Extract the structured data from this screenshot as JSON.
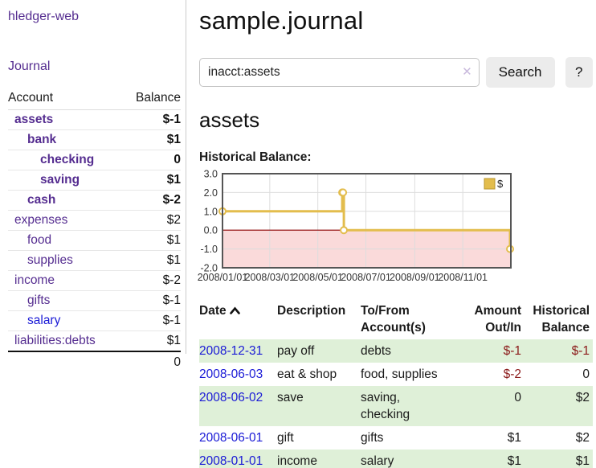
{
  "colors": {
    "link_purple": "#552d90",
    "link_blue": "#1a1ad6",
    "negative_strong": "#8b1a1a",
    "negative_soft": "#bb6565",
    "row_stripe_green": "#dff0d8",
    "button_bg": "#ececec",
    "chart_line_yellow": "#e3bd4d",
    "chart_fill_pink": "#fadada",
    "chart_zero_red": "#8b0000"
  },
  "sidebar": {
    "app_title": "hledger-web",
    "journal_link": "Journal",
    "accounts_table": {
      "headers": {
        "account": "Account",
        "balance": "Balance"
      },
      "rows": [
        {
          "account": "assets",
          "balance": "$-1",
          "indent": 1,
          "bold": true,
          "balance_class": "neg-strong",
          "link": "purple"
        },
        {
          "account": "bank",
          "balance": "$1",
          "indent": 2,
          "bold": true,
          "balance_class": "",
          "link": "purple"
        },
        {
          "account": "checking",
          "balance": "0",
          "indent": 3,
          "bold": true,
          "balance_class": "",
          "link": "purple"
        },
        {
          "account": "saving",
          "balance": "$1",
          "indent": 3,
          "bold": true,
          "balance_class": "",
          "link": "purple"
        },
        {
          "account": "cash",
          "balance": "$-2",
          "indent": 2,
          "bold": true,
          "balance_class": "neg-strong",
          "link": "purple"
        },
        {
          "account": "expenses",
          "balance": "$2",
          "indent": 1,
          "bold": false,
          "balance_class": "",
          "link": "purple"
        },
        {
          "account": "food",
          "balance": "$1",
          "indent": 2,
          "bold": false,
          "balance_class": "",
          "link": "purple"
        },
        {
          "account": "supplies",
          "balance": "$1",
          "indent": 2,
          "bold": false,
          "balance_class": "",
          "link": "purple"
        },
        {
          "account": "income",
          "balance": "$-2",
          "indent": 1,
          "bold": false,
          "balance_class": "neg-soft",
          "link": "purple"
        },
        {
          "account": "gifts",
          "balance": "$-1",
          "indent": 2,
          "bold": false,
          "balance_class": "neg-soft",
          "link": "purple"
        },
        {
          "account": "salary",
          "balance": "$-1",
          "indent": 2,
          "bold": false,
          "balance_class": "neg-soft",
          "link": "blue"
        },
        {
          "account": "liabilities:debts",
          "balance": "$1",
          "indent": 1,
          "bold": false,
          "balance_class": "",
          "link": "purple"
        }
      ],
      "total": "0"
    }
  },
  "main": {
    "page_title": "sample.journal",
    "search": {
      "value": "inacct:assets",
      "clear_icon": "✕",
      "search_button": "Search",
      "help_button": "?"
    },
    "account_heading": "assets",
    "chart_label": "Historical Balance:"
  },
  "chart_data": {
    "type": "line",
    "title": "Historical Balance:",
    "series": [
      {
        "name": "$",
        "step": true,
        "points": [
          [
            "2008-01-01",
            1
          ],
          [
            "2008-06-01",
            2
          ],
          [
            "2008-06-02",
            2
          ],
          [
            "2008-06-03",
            0
          ],
          [
            "2008-12-31",
            -1
          ]
        ]
      }
    ],
    "xlim": [
      "2008-01-01",
      "2009-01-01"
    ],
    "ylim": [
      -2,
      3
    ],
    "x_ticks": [
      "2008/01/01",
      "2008/03/01",
      "2008/05/01",
      "2008/07/01",
      "2008/09/01",
      "2008/11/01"
    ],
    "y_ticks": [
      "3.0",
      "2.0",
      "1.0",
      "0.0",
      "-1.0",
      "-2.0"
    ],
    "legend": {
      "label": "$",
      "position": "top-right"
    },
    "grid": true,
    "negative_region_shaded": true,
    "zero_line": true
  },
  "register": {
    "headers": {
      "date": "Date",
      "description": "Description",
      "accounts": "To/From\nAccount(s)",
      "amount": "Amount\nOut/In",
      "balance": "Historical\nBalance"
    },
    "sort": {
      "column": "date",
      "direction": "ascending"
    },
    "rows": [
      {
        "date": "2008-12-31",
        "description": "pay off",
        "accounts": "debts",
        "amount": "$-1",
        "balance": "$-1",
        "amount_neg": true,
        "balance_neg": true,
        "stripe": true
      },
      {
        "date": "2008-06-03",
        "description": "eat & shop",
        "accounts": "food, supplies",
        "amount": "$-2",
        "balance": "0",
        "amount_neg": true,
        "balance_neg": false,
        "stripe": false
      },
      {
        "date": "2008-06-02",
        "description": "save",
        "accounts": "saving,\nchecking",
        "amount": "0",
        "balance": "$2",
        "amount_neg": false,
        "balance_neg": false,
        "stripe": true
      },
      {
        "date": "2008-06-01",
        "description": "gift",
        "accounts": "gifts",
        "amount": "$1",
        "balance": "$2",
        "amount_neg": false,
        "balance_neg": false,
        "stripe": false
      },
      {
        "date": "2008-01-01",
        "description": "income",
        "accounts": "salary",
        "amount": "$1",
        "balance": "$1",
        "amount_neg": false,
        "balance_neg": false,
        "stripe": true
      }
    ]
  }
}
